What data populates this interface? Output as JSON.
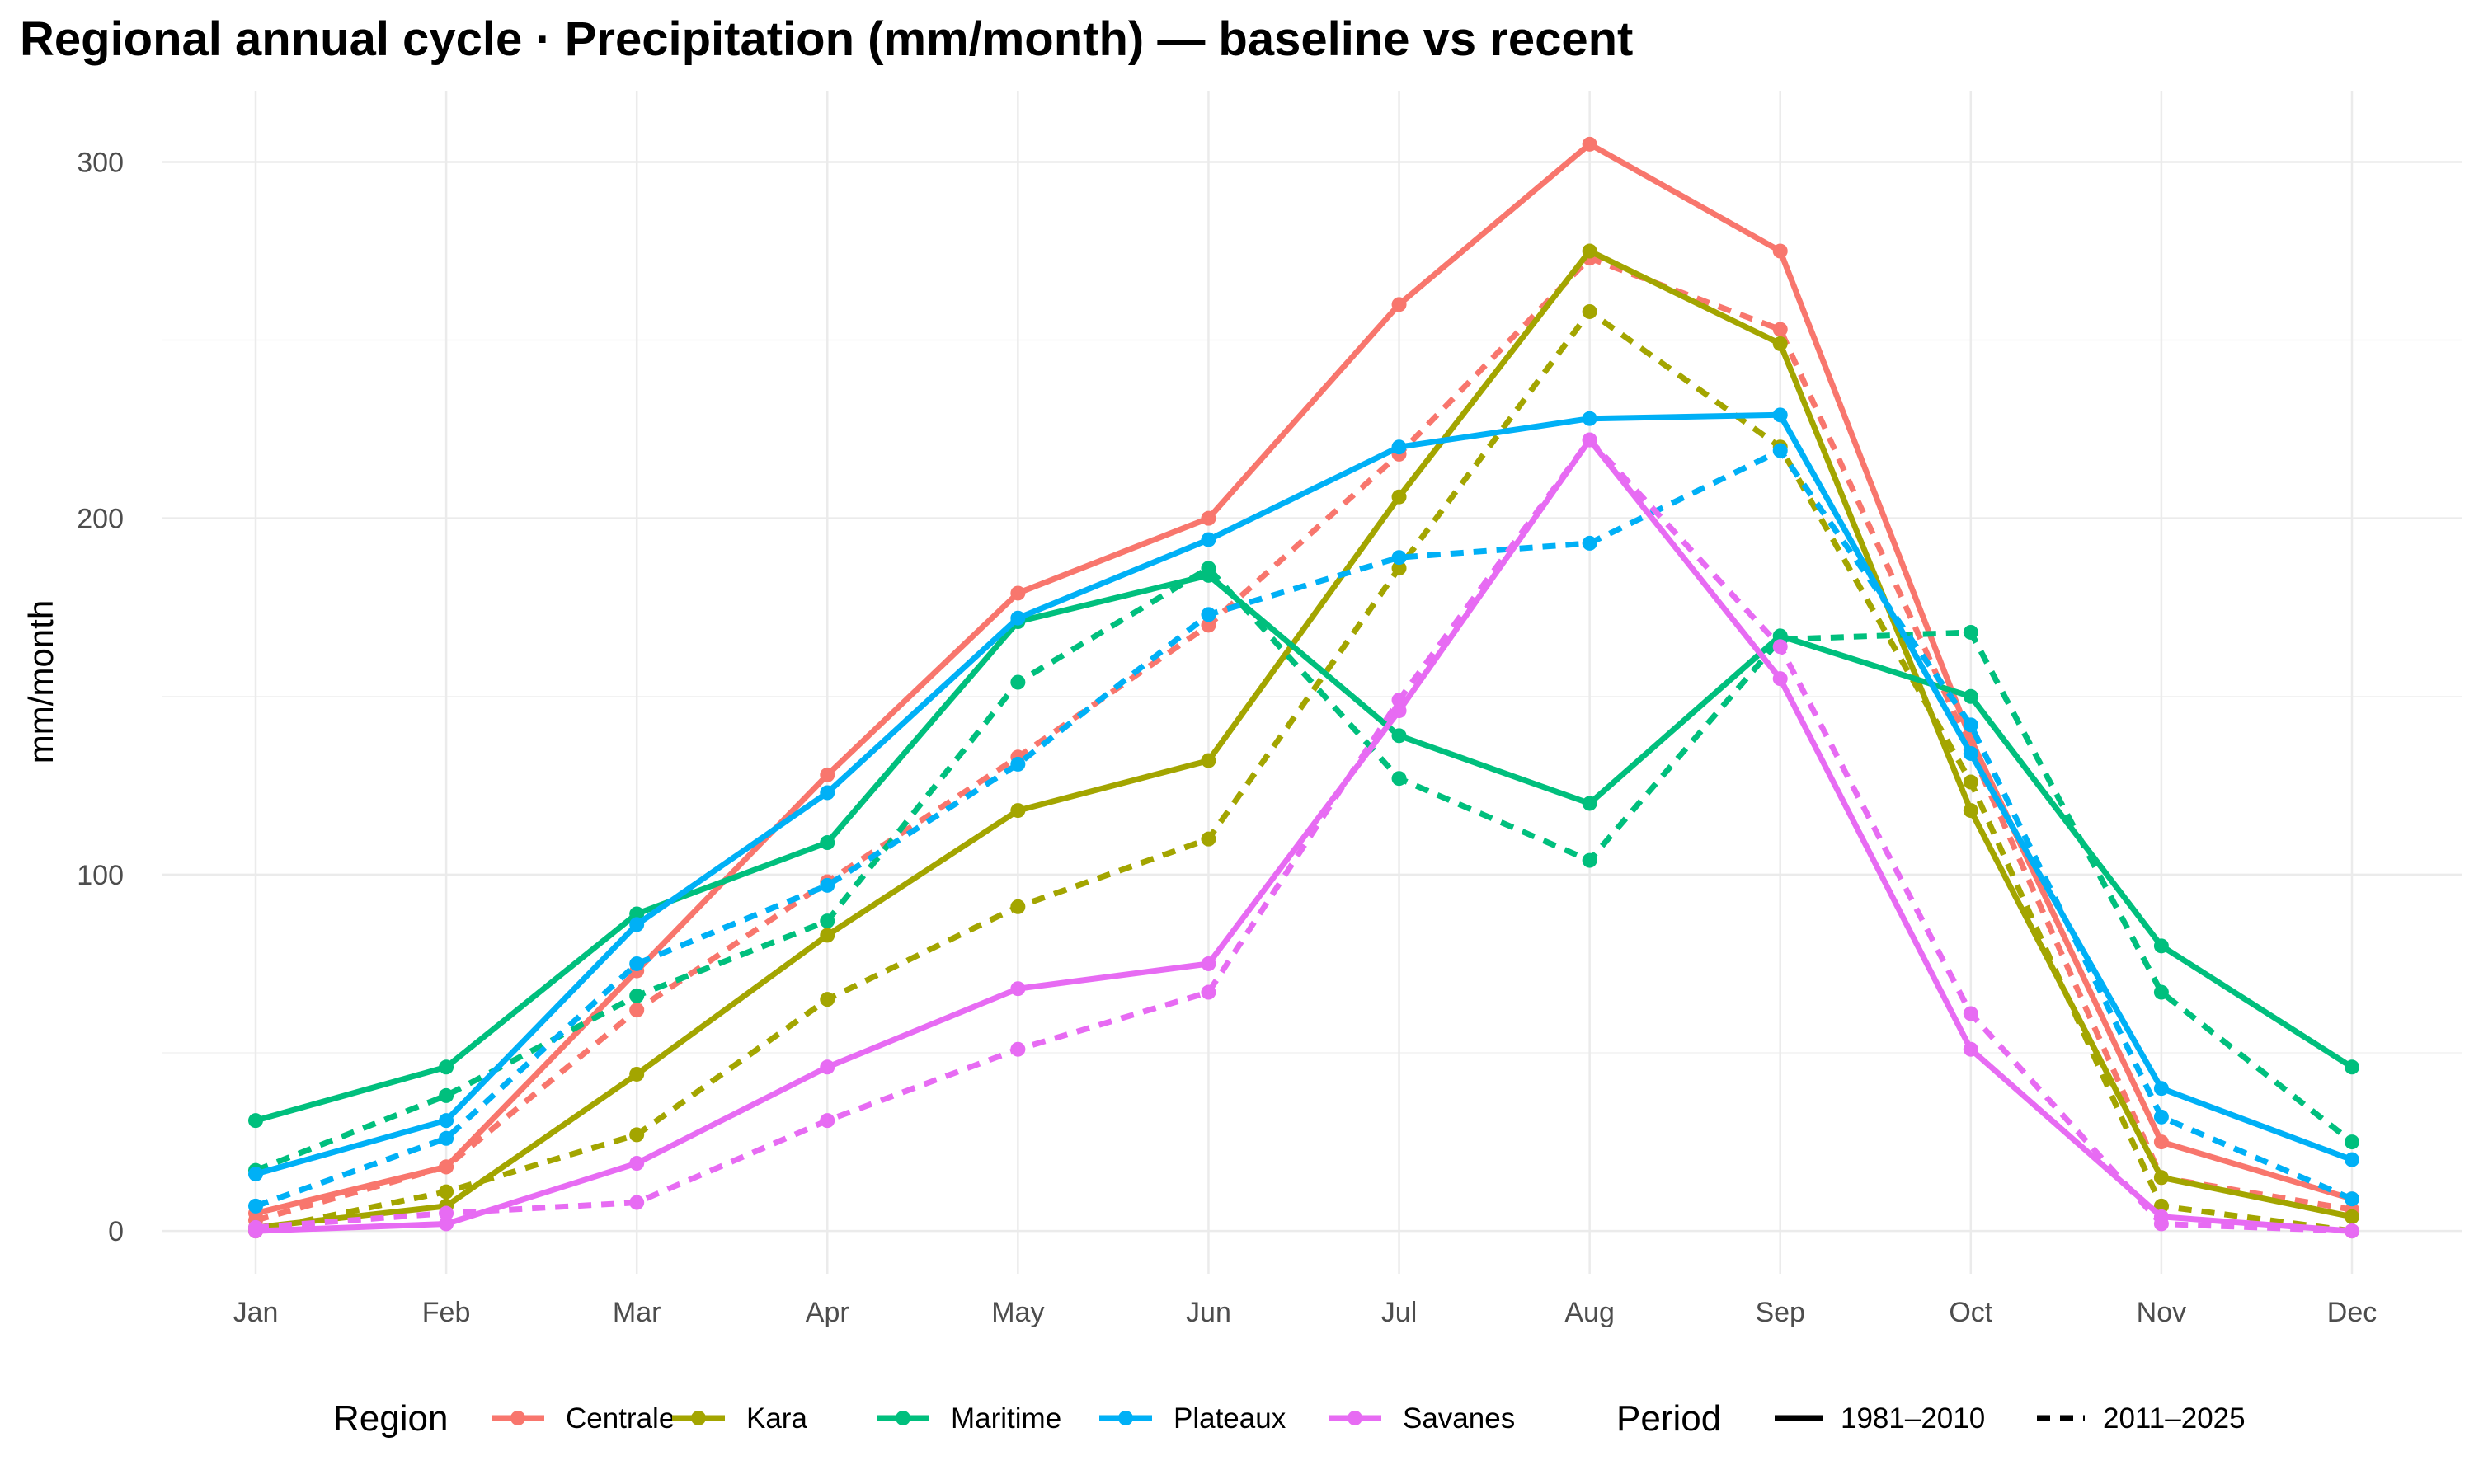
{
  "chart_data": {
    "type": "line",
    "title": "Regional annual cycle · Precipitation (mm/month) — baseline vs recent",
    "xlabel": "",
    "ylabel": "mm/month",
    "categories": [
      "Jan",
      "Feb",
      "Mar",
      "Apr",
      "May",
      "Jun",
      "Jul",
      "Aug",
      "Sep",
      "Oct",
      "Nov",
      "Dec"
    ],
    "ylim": [
      -12,
      320
    ],
    "yticks": [
      0,
      100,
      200,
      300
    ],
    "grid": true,
    "legend_placement": "bottom",
    "legends": [
      {
        "title": "Region",
        "entries": [
          "Centrale",
          "Kara",
          "Maritime",
          "Plateaux",
          "Savanes"
        ]
      },
      {
        "title": "Period",
        "entries": [
          "1981–2010",
          "2011–2025"
        ]
      }
    ],
    "colors": {
      "Centrale": "#F8766D",
      "Kara": "#A3A500",
      "Maritime": "#00BF7D",
      "Plateaux": "#00B0F6",
      "Savanes": "#E76BF3"
    },
    "series": [
      {
        "region": "Centrale",
        "period": "1981–2010",
        "values": [
          5,
          18,
          73,
          128,
          179,
          200,
          260,
          305,
          275,
          138,
          25,
          9
        ]
      },
      {
        "region": "Centrale",
        "period": "2011–2025",
        "values": [
          3,
          18,
          62,
          98,
          133,
          170,
          218,
          273,
          253,
          135,
          15,
          6
        ]
      },
      {
        "region": "Kara",
        "period": "1981–2010",
        "values": [
          1,
          7,
          44,
          83,
          118,
          132,
          206,
          275,
          249,
          118,
          15,
          4
        ]
      },
      {
        "region": "Kara",
        "period": "2011–2025",
        "values": [
          0,
          11,
          27,
          65,
          91,
          110,
          186,
          258,
          220,
          126,
          7,
          0
        ]
      },
      {
        "region": "Maritime",
        "period": "1981–2010",
        "values": [
          31,
          46,
          89,
          109,
          171,
          184,
          139,
          120,
          167,
          150,
          80,
          46
        ]
      },
      {
        "region": "Maritime",
        "period": "2011–2025",
        "values": [
          17,
          38,
          66,
          87,
          154,
          186,
          127,
          104,
          166,
          168,
          67,
          25
        ]
      },
      {
        "region": "Plateaux",
        "period": "1981–2010",
        "values": [
          16,
          31,
          86,
          123,
          172,
          194,
          220,
          228,
          229,
          134,
          40,
          20
        ]
      },
      {
        "region": "Plateaux",
        "period": "2011–2025",
        "values": [
          7,
          26,
          75,
          97,
          131,
          173,
          189,
          193,
          219,
          142,
          32,
          9
        ]
      },
      {
        "region": "Savanes",
        "period": "1981–2010",
        "values": [
          0,
          2,
          19,
          46,
          68,
          75,
          146,
          222,
          155,
          51,
          4,
          0
        ]
      },
      {
        "region": "Savanes",
        "period": "2011–2025",
        "values": [
          1,
          5,
          8,
          31,
          51,
          67,
          149,
          222,
          164,
          61,
          2,
          0
        ]
      }
    ]
  }
}
